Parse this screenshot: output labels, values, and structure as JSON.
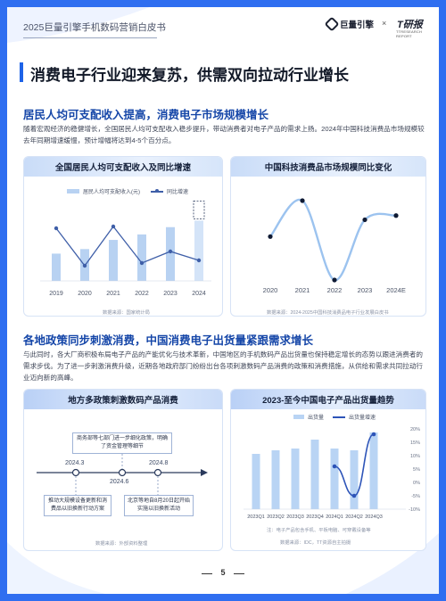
{
  "header": {
    "doc_title": "2025巨量引擎手机数码营销白皮书",
    "logo_a": "巨量引擎",
    "times": "×",
    "logo_b": "T研报",
    "logo_b_sub": "TTRESEARCH REPORT"
  },
  "main_title": "消费电子行业迎来复苏，供需双向拉动行业增长",
  "section1": {
    "title": "居民人均可支配收入提高，消费电子市场规模增长",
    "paragraph": "随着宏观经济的稳健增长，全国居民人均可支配收入稳步提升，带动消费者对电子产品的需求上扬。2024年中国科技消费品市场规模较去年同期增速缓慢，预计增幅将达到4-5个百分点。"
  },
  "card1": {
    "title": "全国居民人均可支配收入及同比增速",
    "legend_bar": "居民人均可支配收入(元)",
    "legend_line": "同比增速",
    "source": "数据来源：国家统计局"
  },
  "card2": {
    "title": "中国科技消费品市场规模同比变化",
    "source": "数据来源：2024-2025中国科技消费品电子行业发展白皮书"
  },
  "section2": {
    "title": "各地政策同步刺激消费，中国消费电子出货量紧跟需求增长",
    "paragraph": "与此同时，各大厂商积极布局电子产品的产能优化与技术革新，中国地区的手机数码产品出货量也保持稳定增长的态势以跟进消费者的需求步伐。为了进一步刺激消费升级，近期各地政府部门纷纷出台各项刺激数码产品消费的政策和消费措施，从供给和需求共同拉动行业迈向新的高峰。"
  },
  "card3": {
    "title": "地方多政策刺激数码产品消费",
    "top_box": "商务部等七部门进一步细化政策，明确了资金管理等细节",
    "dates": [
      "2024.3",
      "2024.6",
      "2024.8"
    ],
    "box_left": "推动大规模设备更新和消费品以旧换新行动方案",
    "box_right": "北京等地自8月20日起开始实施以旧换新活动",
    "source": "数据来源：外部资料整理"
  },
  "card4": {
    "title": "2023-至今中国电子产品出货量趋势",
    "legend_bar": "出货量",
    "legend_line": "出货量增速",
    "note": "注：电子产品包含手机、平板电脑、可穿戴设备等",
    "source": "数据来源：IDC，TT资源自主拍摄"
  },
  "footer": {
    "page_number": "5"
  },
  "colors": {
    "brand_blue": "#1e63e8",
    "bar_light": "#b8d2f2",
    "line_dark": "#3f5fa8",
    "curve_blue": "#9cc3ef"
  },
  "chart_data": [
    {
      "type": "bar",
      "title": "全国居民人均可支配收入及同比增速",
      "categories": [
        "2019",
        "2020",
        "2021",
        "2022",
        "2023",
        "2024"
      ],
      "series": [
        {
          "name": "居民人均可支配收入(元)",
          "type": "bar",
          "values": [
            30733,
            32189,
            35128,
            36883,
            39218,
            41314
          ]
        },
        {
          "name": "同比增速",
          "type": "line",
          "values": [
            8.9,
            4.7,
            9.1,
            5.0,
            6.3,
            5.3
          ]
        }
      ],
      "highlight_last": true,
      "legend": "top"
    },
    {
      "type": "line",
      "title": "中国科技消费品市场规模同比变化",
      "categories": [
        "2020",
        "2021",
        "2022",
        "2023",
        "2024E"
      ],
      "series": [
        {
          "name": "",
          "values": [
            0.0,
            7.7,
            -9.3,
            3.6,
            4.5
          ]
        }
      ]
    },
    {
      "type": "bar",
      "title": "2023-至今中国电子产品出货量趋势",
      "categories": [
        "2023Q1",
        "2023Q2",
        "2023Q3",
        "2023Q4",
        "2024Q1",
        "2024Q2",
        "2024Q3"
      ],
      "series": [
        {
          "name": "出货量",
          "type": "bar",
          "values": [
            62,
            66,
            68,
            78,
            68,
            66,
            86
          ]
        },
        {
          "name": "出货量增速",
          "type": "line",
          "values": [
            null,
            null,
            null,
            null,
            6,
            -5,
            18
          ]
        }
      ],
      "y2ticks": [
        "20%",
        "15%",
        "10%",
        "5%",
        "0%",
        "-5%",
        "-10%"
      ],
      "y2lim": [
        -10,
        20
      ],
      "legend": "top-center"
    }
  ]
}
